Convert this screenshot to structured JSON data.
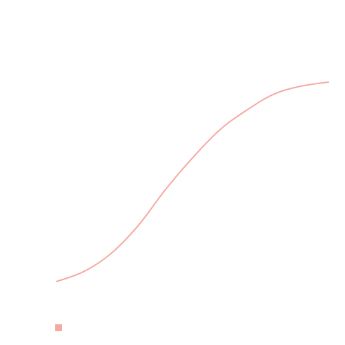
{
  "chart_data": {
    "type": "line",
    "title": "",
    "xlabel": "",
    "ylabel": "",
    "grid": false,
    "legend": "bottom-left",
    "series": [
      {
        "color": "#f4aaa1",
        "x": [
          0,
          1,
          2,
          3,
          4,
          5,
          6,
          7,
          8,
          9,
          10
        ],
        "y": [
          0,
          0.05,
          0.14,
          0.28,
          0.46,
          0.62,
          0.76,
          0.86,
          0.94,
          0.98,
          1.0
        ]
      }
    ]
  }
}
